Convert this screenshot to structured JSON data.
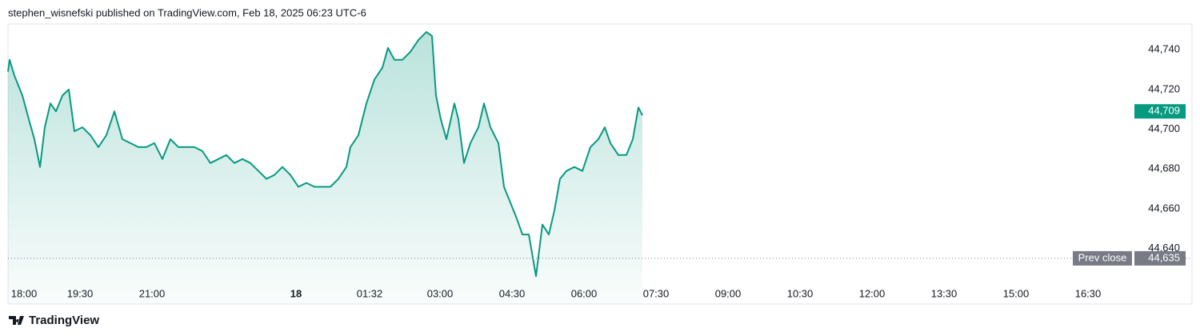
{
  "chart_data": {
    "type": "area",
    "title": "stephen_wisnefski published on TradingView.com, Feb 18, 2025 06:23 UTC-6",
    "source": "TradingView",
    "x": [
      "18:00",
      "18:02",
      "18:08",
      "18:18",
      "18:26",
      "18:33",
      "18:40",
      "18:46",
      "18:53",
      "19:00",
      "19:08",
      "19:16",
      "19:23",
      "19:33",
      "19:43",
      "19:53",
      "20:03",
      "20:13",
      "20:23",
      "20:33",
      "20:43",
      "20:53",
      "21:03",
      "21:13",
      "21:23",
      "21:33",
      "21:43",
      "21:53",
      "22:03",
      "22:13",
      "22:23",
      "22:33",
      "22:43",
      "22:53",
      "23:03",
      "23:13",
      "23:23",
      "23:33",
      "23:43",
      "23:53",
      "00:03",
      "00:13",
      "00:23",
      "00:33",
      "00:43",
      "00:53",
      "01:03",
      "01:08",
      "01:18",
      "01:28",
      "01:38",
      "01:48",
      "01:55",
      "02:03",
      "02:13",
      "02:23",
      "02:33",
      "02:43",
      "02:50",
      "02:55",
      "03:01",
      "03:08",
      "03:18",
      "03:23",
      "03:30",
      "03:38",
      "03:48",
      "03:55",
      "04:03",
      "04:13",
      "04:20",
      "04:28",
      "04:36",
      "04:43",
      "04:51",
      "05:00",
      "05:08",
      "05:16",
      "05:23",
      "05:30",
      "05:38",
      "05:48",
      "05:58",
      "06:08",
      "06:18",
      "06:26",
      "06:33",
      "06:43",
      "06:53",
      "07:01",
      "07:08",
      "07:13"
    ],
    "series": [
      {
        "color": "#089981",
        "values": [
          44729,
          44735,
          44727,
          44717,
          44705,
          44695,
          44681,
          44701,
          44713,
          44709,
          44717,
          44720,
          44699,
          44701,
          44697,
          44691,
          44697,
          44709,
          44695,
          44693,
          44691,
          44691,
          44693,
          44685,
          44695,
          44691,
          44691,
          44691,
          44689,
          44683,
          44685,
          44687,
          44683,
          44685,
          44683,
          44679,
          44675,
          44677,
          44681,
          44677,
          44671,
          44673,
          44671,
          44671,
          44671,
          44675,
          44681,
          44691,
          44697,
          44713,
          44725,
          44731,
          44741,
          44735,
          44735,
          44739,
          44745,
          44749,
          44747,
          44717,
          44705,
          44695,
          44713,
          44705,
          44683,
          44693,
          44701,
          44713,
          44701,
          44693,
          44671,
          44663,
          44655,
          44647,
          44647,
          44626,
          44652,
          44647,
          44659,
          44675,
          44679,
          44681,
          44679,
          44691,
          44695,
          44701,
          44693,
          44687,
          44687,
          44695,
          44711,
          44707
        ]
      }
    ],
    "last_price": {
      "value": 44709,
      "label": "44,709"
    },
    "prev_close": {
      "name": "Prev close",
      "value": 44635,
      "label": "44,635"
    },
    "xlim": [
      "18:00",
      "17:30"
    ],
    "xticks": [
      "18:00",
      "19:30",
      "21:00",
      {
        "value": "00:00",
        "label": "18"
      },
      "01:32",
      "03:00",
      "04:30",
      "06:00",
      "07:30",
      "09:00",
      "10:30",
      "12:00",
      "13:30",
      "15:00",
      "16:30"
    ],
    "ylim": [
      44612,
      44753
    ],
    "yticks": [
      {
        "value": 44640,
        "label": "44,640"
      },
      {
        "value": 44660,
        "label": "44,660"
      },
      {
        "value": 44680,
        "label": "44,680"
      },
      {
        "value": 44700,
        "label": "44,700"
      },
      {
        "value": 44720,
        "label": "44,720"
      },
      {
        "value": 44740,
        "label": "44,740"
      }
    ]
  }
}
